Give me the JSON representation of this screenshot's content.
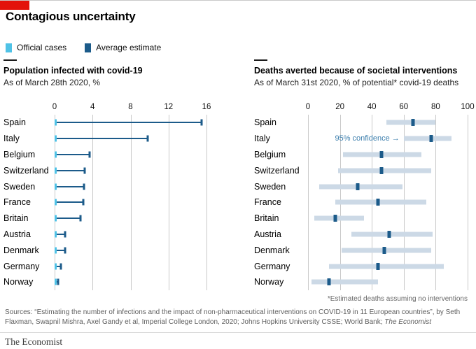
{
  "header": {
    "title": "Contagious uncertainty"
  },
  "legend": {
    "items": [
      {
        "label": "Official cases"
      },
      {
        "label": "Average estimate"
      }
    ]
  },
  "colors": {
    "brand_red": "#e3120b",
    "official": "#4fc2e6",
    "estimate": "#1c5b8a",
    "band": "#ccd9e6",
    "annotation": "#3d7fad",
    "grid": "#c9c9c9"
  },
  "chart_data": [
    {
      "type": "bar-whisker",
      "title": "Population infected with covid-19",
      "subtitle": "As of March 28th 2020, %",
      "orientation": "horizontal",
      "categories": [
        "Spain",
        "Italy",
        "Belgium",
        "Switzerland",
        "Sweden",
        "France",
        "Britain",
        "Austria",
        "Denmark",
        "Germany",
        "Norway"
      ],
      "series": [
        {
          "name": "Official cases",
          "values": [
            0.16,
            0.14,
            0.08,
            0.16,
            0.03,
            0.05,
            0.03,
            0.09,
            0.04,
            0.06,
            0.08
          ]
        },
        {
          "name": "Average estimate",
          "values": [
            15.5,
            9.8,
            3.7,
            3.2,
            3.1,
            3.0,
            2.7,
            1.1,
            1.1,
            0.7,
            0.4
          ]
        }
      ],
      "xlim": [
        0,
        16
      ],
      "xticks": [
        0,
        4,
        8,
        12,
        16
      ],
      "grid": "vertical"
    },
    {
      "type": "dot-range",
      "title": "Deaths averted because of societal interventions",
      "subtitle": "As of March 31st 2020, % of potential* covid-19 deaths",
      "orientation": "horizontal",
      "categories": [
        "Spain",
        "Italy",
        "Belgium",
        "Switzerland",
        "Sweden",
        "France",
        "Britain",
        "Austria",
        "Denmark",
        "Germany",
        "Norway"
      ],
      "series": [
        {
          "name": "Average estimate",
          "values": [
            66,
            77,
            46,
            46,
            31,
            44,
            17,
            51,
            48,
            44,
            13
          ]
        },
        {
          "name": "95% confidence interval",
          "ranges": [
            [
              49,
              80
            ],
            [
              60,
              90
            ],
            [
              22,
              71
            ],
            [
              19,
              77
            ],
            [
              7,
              59
            ],
            [
              17,
              74
            ],
            [
              4,
              35
            ],
            [
              27,
              78
            ],
            [
              21,
              77
            ],
            [
              13,
              85
            ],
            [
              2,
              44
            ]
          ]
        }
      ],
      "xlim": [
        0,
        100
      ],
      "xticks": [
        0,
        20,
        40,
        60,
        80,
        100
      ],
      "grid": "vertical",
      "annotation": "95% confidence →",
      "annotation_index": 1
    }
  ],
  "footnote": "*Estimated deaths assuming no interventions",
  "sources": {
    "prefix": "Sources: “Estimating the number of infections and the impact of non-pharmaceutical interventions on COVID-19 in 11 European countries”, by Seth Flaxman, Swapnil Mishra, Axel Gandy et al, Imperial College London, 2020; Johns Hopkins University CSSE; World Bank; ",
    "emphasis": "The Economist"
  },
  "brand": "The Economist"
}
